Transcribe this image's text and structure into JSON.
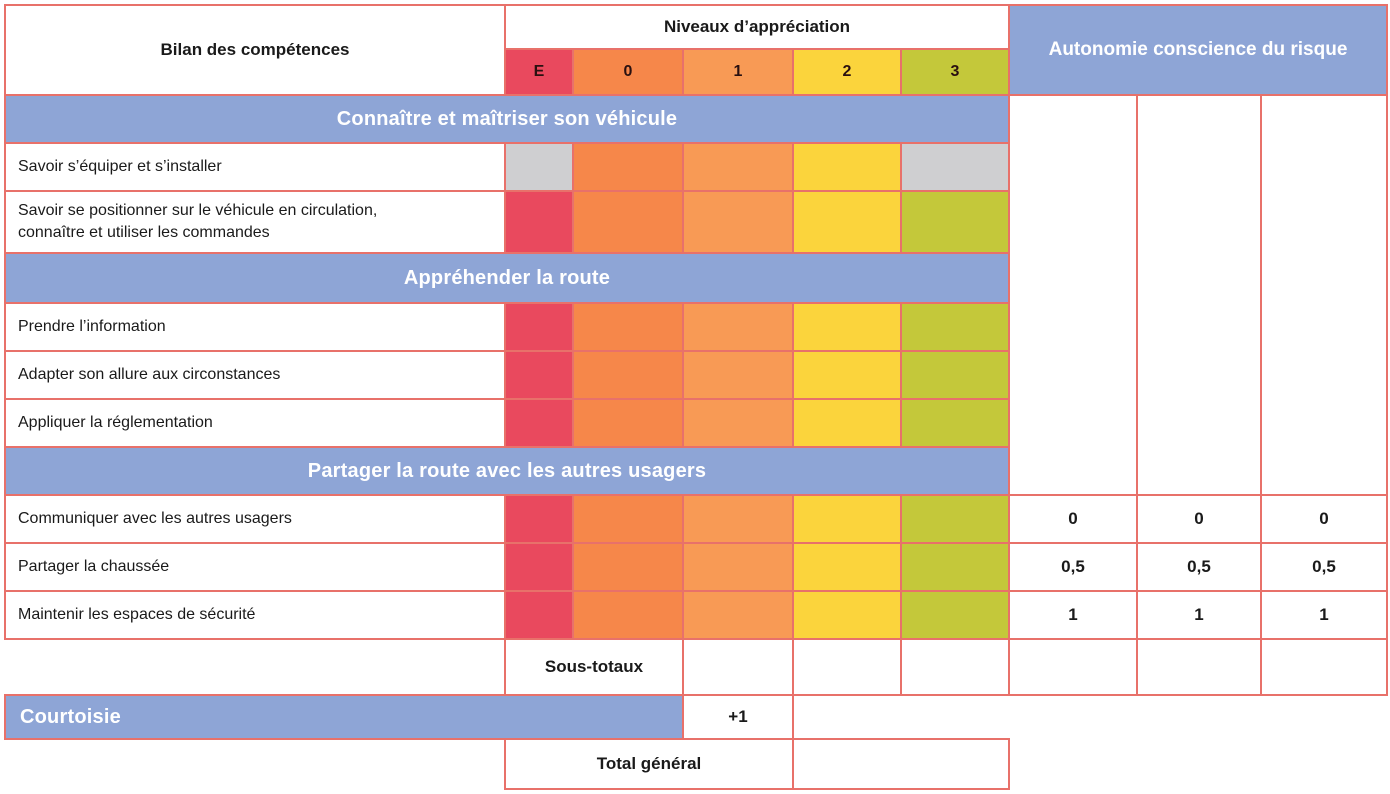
{
  "header": {
    "bilan_label": "Bilan des compétences",
    "niveaux_label": "Niveaux d’appréciation",
    "levels": [
      "E",
      "0",
      "1",
      "2",
      "3"
    ],
    "autonomie_label": "Autonomie conscience du risque"
  },
  "sections": [
    {
      "title": "Connaître et maîtriser son véhicule",
      "items": [
        {
          "label": "Savoir s’équiper et s’installer"
        },
        {
          "label_lines": [
            "Savoir se positionner sur le véhicule en circulation,",
            "connaître et utiliser les commandes"
          ]
        }
      ]
    },
    {
      "title": "Appréhender la route",
      "items": [
        {
          "label": "Prendre l’information"
        },
        {
          "label": "Adapter son allure aux circonstances"
        },
        {
          "label": "Appliquer la réglementation"
        }
      ]
    },
    {
      "title": "Partager la route avec les autres usagers",
      "items": [
        {
          "label": "Communiquer avec les autres usagers",
          "autonomie": [
            "0",
            "0",
            "0"
          ]
        },
        {
          "label": "Partager la chaussée",
          "autonomie": [
            "0,5",
            "0,5",
            "0,5"
          ]
        },
        {
          "label": "Maintenir les espaces de sécurité",
          "autonomie": [
            "1",
            "1",
            "1"
          ]
        }
      ]
    }
  ],
  "footer": {
    "sous_totaux_label": "Sous-totaux",
    "courtoisie_label": "Courtoisie",
    "courtoisie_value": "+1",
    "total_label": "Total général"
  },
  "colors": {
    "border": "#e8716a",
    "band_blue": "#8ea5d6",
    "level_E": "#e9495e",
    "level_0": "#f6874a",
    "level_1": "#f89a55",
    "level_2": "#fbd43c",
    "level_3": "#c4c83a",
    "disabled_gray": "#cfcfd1"
  }
}
